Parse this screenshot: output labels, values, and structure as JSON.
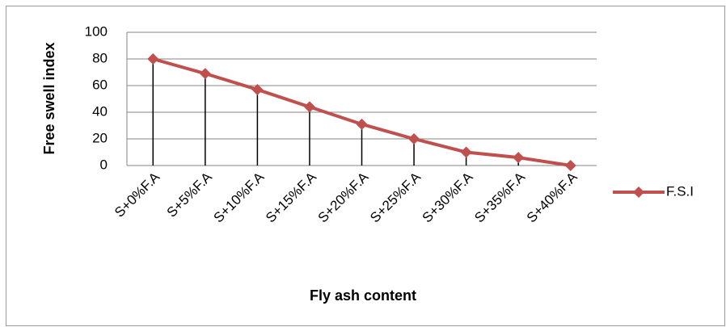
{
  "chart_data": {
    "type": "line",
    "categories": [
      "S+0%F.A",
      "S+5%F.A",
      "S+10%F.A",
      "S+15%F.A",
      "S+20%F.A",
      "S+25%F.A",
      "S+30%F.A",
      "S+35%F.A",
      "S+40%F.A"
    ],
    "series": [
      {
        "name": "F.S.I",
        "color": "#c0504d",
        "values": [
          80,
          69,
          57,
          44,
          31,
          20,
          10,
          6,
          0
        ]
      }
    ],
    "x_label": "Fly ash content",
    "y_label": "Free swell index",
    "ylim": [
      0,
      100
    ],
    "yticks": [
      0,
      20,
      40,
      60,
      80,
      100
    ],
    "grid": true,
    "drop_lines": true,
    "legend": "right"
  }
}
